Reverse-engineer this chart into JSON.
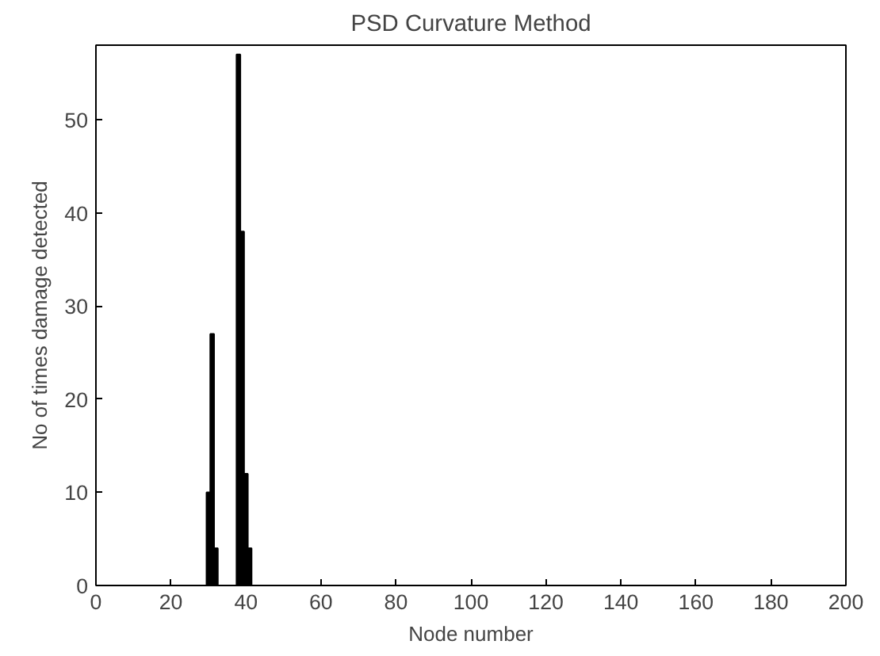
{
  "chart_data": {
    "type": "bar",
    "title": "PSD Curvature Method",
    "xlabel": "Node number",
    "ylabel": "No of times damage detected",
    "x": [
      30,
      31,
      32,
      38,
      39,
      40,
      41
    ],
    "values": [
      10,
      27,
      4,
      57,
      38,
      12,
      4
    ],
    "color": "#000000",
    "xlim": [
      0,
      200
    ],
    "xticks": [
      0,
      20,
      40,
      60,
      80,
      100,
      120,
      140,
      160,
      180,
      200
    ],
    "ylim": [
      0,
      58
    ],
    "yticks": [
      0,
      10,
      20,
      30,
      40,
      50
    ],
    "grid": false
  }
}
